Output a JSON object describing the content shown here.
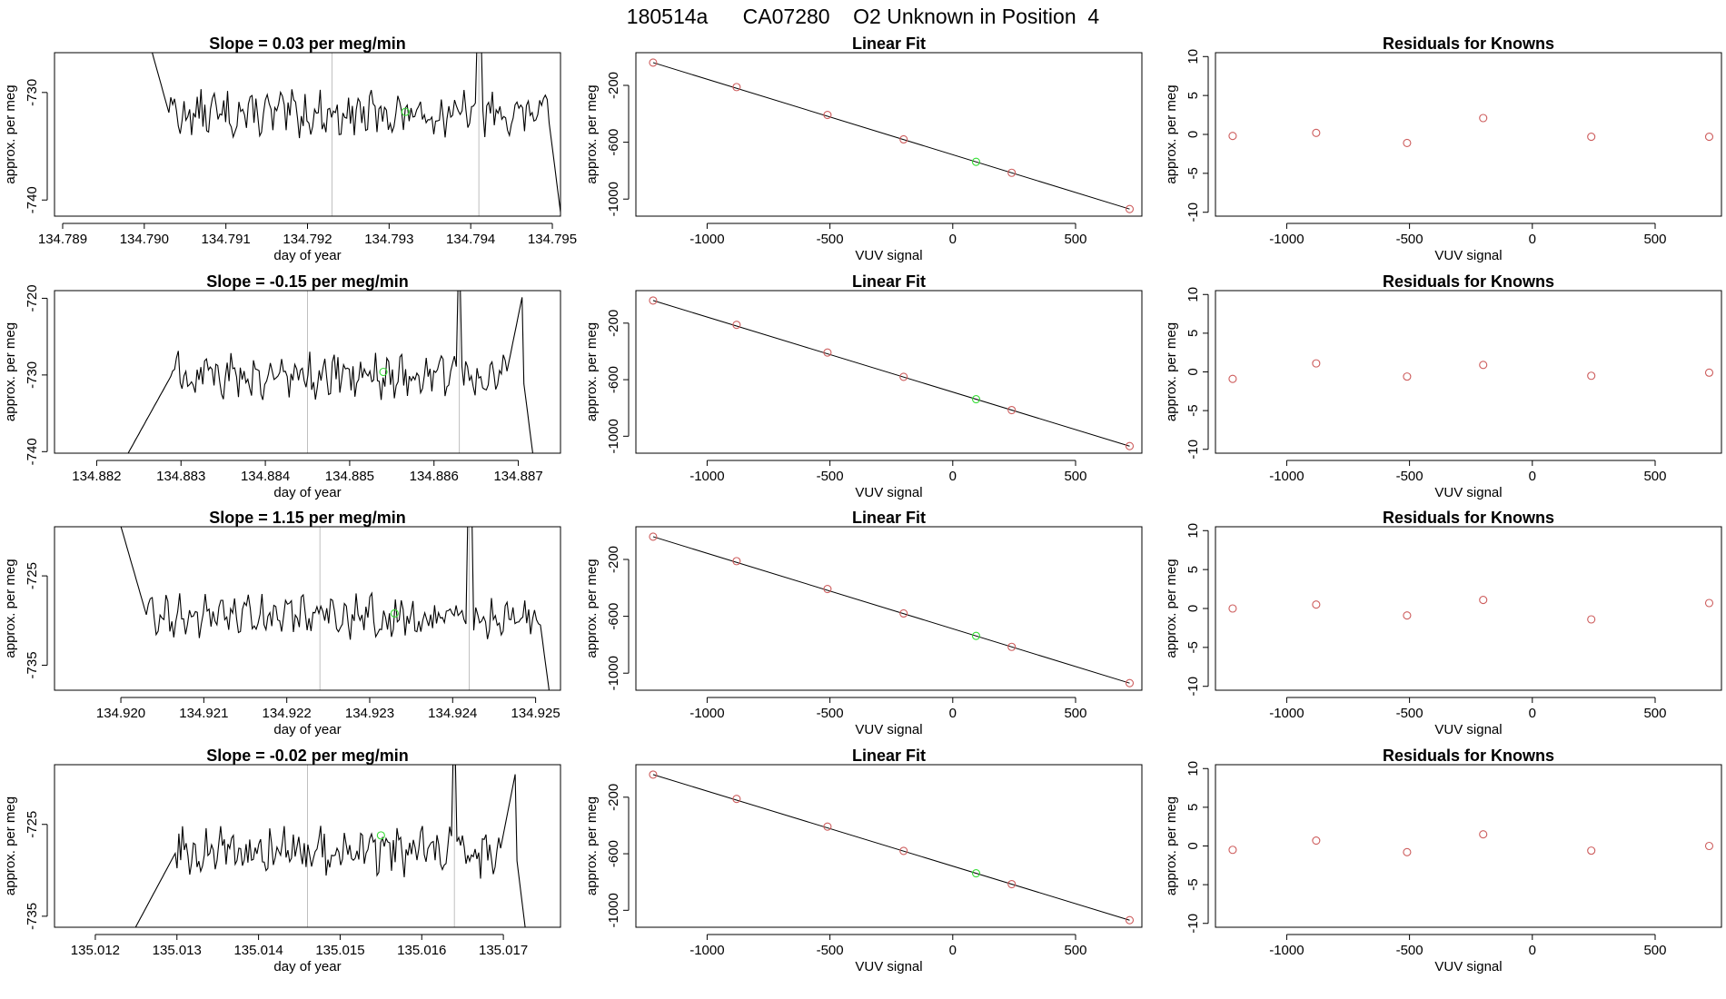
{
  "header": {
    "title": "180514a      CA07280    O2 Unknown in Position  4"
  },
  "colors": {
    "known_point": "#cd5c5c",
    "unknown_point": "#33dd33",
    "line": "#000000",
    "marker_line": "#bfbfbf",
    "frame": "#000000"
  },
  "chart_data": [
    {
      "type": "line",
      "title": "Slope =  0.03  per meg/min",
      "xlabel": "day of year",
      "ylabel": "approx. per meg",
      "xlim": [
        134.7889,
        134.7951
      ],
      "ylim": [
        -741.5,
        -726.3
      ],
      "x_ticks": [
        "134.789",
        "134.790",
        "134.791",
        "134.792",
        "134.793",
        "134.794",
        "134.795"
      ],
      "x_tick_values": [
        134.789,
        134.79,
        134.791,
        134.792,
        134.793,
        134.794,
        134.795
      ],
      "y_ticks": [
        "-730",
        "-740"
      ],
      "y_tick_values": [
        -730,
        -740
      ],
      "vlines": [
        134.7923,
        134.7941
      ],
      "unknown_point": {
        "x": 134.7932,
        "y": -731.8
      },
      "trace": {
        "x_start": 134.79,
        "x_end": 134.7951,
        "level": -732,
        "noise": 1.6,
        "mode": "flat"
      }
    },
    {
      "type": "scatter",
      "title": "Linear Fit",
      "xlabel": "VUV signal",
      "ylabel": "approx. per meg",
      "xlim": [
        -1290,
        770
      ],
      "ylim": [
        -1120,
        30
      ],
      "x_ticks": [
        "-1000",
        "-500",
        "0",
        "500"
      ],
      "x_tick_values": [
        -1000,
        -500,
        0,
        500
      ],
      "y_ticks": [
        "-200",
        "-600",
        "-1000"
      ],
      "y_tick_values": [
        -200,
        -600,
        -1000
      ],
      "knowns": [
        {
          "x": -1220,
          "y": -40
        },
        {
          "x": -880,
          "y": -212
        },
        {
          "x": -510,
          "y": -408
        },
        {
          "x": -200,
          "y": -580
        },
        {
          "x": 240,
          "y": -815
        },
        {
          "x": 720,
          "y": -1070
        }
      ],
      "unknown": {
        "x": 95,
        "y": -738
      },
      "fit_line": {
        "x0": -1220,
        "y0": -40,
        "x1": 720,
        "y1": -1070
      }
    },
    {
      "type": "scatter",
      "title": "Residuals for Knowns",
      "xlabel": "VUV signal",
      "ylabel": "approx. per meg",
      "xlim": [
        -1290,
        770
      ],
      "ylim": [
        -10.5,
        10.5
      ],
      "x_ticks": [
        "-1000",
        "-500",
        "0",
        "500"
      ],
      "x_tick_values": [
        -1000,
        -500,
        0,
        500
      ],
      "y_ticks": [
        "10",
        "5",
        "0",
        "-5",
        "-10"
      ],
      "y_tick_values": [
        10,
        5,
        0,
        -5,
        -10
      ],
      "points": [
        {
          "x": -1220,
          "y": -0.2
        },
        {
          "x": -880,
          "y": 0.2
        },
        {
          "x": -510,
          "y": -1.1
        },
        {
          "x": -200,
          "y": 2.1
        },
        {
          "x": 240,
          "y": -0.3
        },
        {
          "x": 720,
          "y": -0.3
        }
      ]
    },
    {
      "type": "line",
      "title": "Slope =  -0.15  per meg/min",
      "xlabel": "day of year",
      "ylabel": "approx. per meg",
      "xlim": [
        134.8815,
        134.8875
      ],
      "ylim": [
        -740.2,
        -719
      ],
      "x_ticks": [
        "134.882",
        "134.883",
        "134.884",
        "134.885",
        "134.886",
        "134.887"
      ],
      "x_tick_values": [
        134.882,
        134.883,
        134.884,
        134.885,
        134.886,
        134.887
      ],
      "y_ticks": [
        "-720",
        "-730",
        "-740"
      ],
      "y_tick_values": [
        -720,
        -730,
        -740
      ],
      "vlines": [
        134.8845,
        134.8863
      ],
      "unknown_point": {
        "x": 134.8854,
        "y": -729.6
      },
      "trace": {
        "x_start": 134.8823,
        "x_end": 134.8872,
        "level": -730,
        "noise": 2.2,
        "mode": "rise"
      }
    },
    {
      "type": "scatter",
      "title": "Linear Fit",
      "xlabel": "VUV signal",
      "ylabel": "approx. per meg",
      "xlim": [
        -1290,
        770
      ],
      "ylim": [
        -1120,
        30
      ],
      "x_ticks": [
        "-1000",
        "-500",
        "0",
        "500"
      ],
      "x_tick_values": [
        -1000,
        -500,
        0,
        500
      ],
      "y_ticks": [
        "-200",
        "-600",
        "-1000"
      ],
      "y_tick_values": [
        -200,
        -600,
        -1000
      ],
      "knowns": [
        {
          "x": -1220,
          "y": -40
        },
        {
          "x": -880,
          "y": -212
        },
        {
          "x": -510,
          "y": -408
        },
        {
          "x": -200,
          "y": -580
        },
        {
          "x": 240,
          "y": -815
        },
        {
          "x": 720,
          "y": -1070
        }
      ],
      "unknown": {
        "x": 95,
        "y": -738
      },
      "fit_line": {
        "x0": -1220,
        "y0": -40,
        "x1": 720,
        "y1": -1070
      }
    },
    {
      "type": "scatter",
      "title": "Residuals for Knowns",
      "xlabel": "VUV signal",
      "ylabel": "approx. per meg",
      "xlim": [
        -1290,
        770
      ],
      "ylim": [
        -10.5,
        10.5
      ],
      "x_ticks": [
        "-1000",
        "-500",
        "0",
        "500"
      ],
      "x_tick_values": [
        -1000,
        -500,
        0,
        500
      ],
      "y_ticks": [
        "10",
        "5",
        "0",
        "-5",
        "-10"
      ],
      "y_tick_values": [
        10,
        5,
        0,
        -5,
        -10
      ],
      "points": [
        {
          "x": -1220,
          "y": -0.9
        },
        {
          "x": -880,
          "y": 1.1
        },
        {
          "x": -510,
          "y": -0.6
        },
        {
          "x": -200,
          "y": 0.9
        },
        {
          "x": 240,
          "y": -0.5
        },
        {
          "x": 720,
          "y": -0.1
        }
      ]
    },
    {
      "type": "line",
      "title": "Slope =  1.15  per meg/min",
      "xlabel": "day of year",
      "ylabel": "approx. per meg",
      "xlim": [
        134.9192,
        134.9253
      ],
      "ylim": [
        -737.8,
        -719.5
      ],
      "x_ticks": [
        "134.920",
        "134.921",
        "134.922",
        "134.923",
        "134.924",
        "134.925"
      ],
      "x_tick_values": [
        134.92,
        134.921,
        134.922,
        134.923,
        134.924,
        134.925
      ],
      "y_ticks": [
        "-725",
        "-735"
      ],
      "y_tick_values": [
        -725,
        -735
      ],
      "vlines": [
        134.9224,
        134.9242
      ],
      "unknown_point": {
        "x": 134.9233,
        "y": -729.2
      },
      "trace": {
        "x_start": 134.92,
        "x_end": 134.9252,
        "level": -729.5,
        "noise": 1.8,
        "mode": "flat"
      }
    },
    {
      "type": "scatter",
      "title": "Linear Fit",
      "xlabel": "VUV signal",
      "ylabel": "approx. per meg",
      "xlim": [
        -1290,
        770
      ],
      "ylim": [
        -1120,
        30
      ],
      "x_ticks": [
        "-1000",
        "-500",
        "0",
        "500"
      ],
      "x_tick_values": [
        -1000,
        -500,
        0,
        500
      ],
      "y_ticks": [
        "-200",
        "-600",
        "-1000"
      ],
      "y_tick_values": [
        -200,
        -600,
        -1000
      ],
      "knowns": [
        {
          "x": -1220,
          "y": -40
        },
        {
          "x": -880,
          "y": -212
        },
        {
          "x": -510,
          "y": -408
        },
        {
          "x": -200,
          "y": -580
        },
        {
          "x": 240,
          "y": -815
        },
        {
          "x": 720,
          "y": -1070
        }
      ],
      "unknown": {
        "x": 95,
        "y": -738
      },
      "fit_line": {
        "x0": -1220,
        "y0": -40,
        "x1": 720,
        "y1": -1070
      }
    },
    {
      "type": "scatter",
      "title": "Residuals for Knowns",
      "xlabel": "VUV signal",
      "ylabel": "approx. per meg",
      "xlim": [
        -1290,
        770
      ],
      "ylim": [
        -10.5,
        10.5
      ],
      "x_ticks": [
        "-1000",
        "-500",
        "0",
        "500"
      ],
      "x_tick_values": [
        -1000,
        -500,
        0,
        500
      ],
      "y_ticks": [
        "10",
        "5",
        "0",
        "-5",
        "-10"
      ],
      "y_tick_values": [
        10,
        5,
        0,
        -5,
        -10
      ],
      "points": [
        {
          "x": -1220,
          "y": 0.0
        },
        {
          "x": -880,
          "y": 0.5
        },
        {
          "x": -510,
          "y": -0.9
        },
        {
          "x": -200,
          "y": 1.1
        },
        {
          "x": 240,
          "y": -1.4
        },
        {
          "x": 720,
          "y": 0.7
        }
      ]
    },
    {
      "type": "line",
      "title": "Slope =  -0.02  per meg/min",
      "xlabel": "day of year",
      "ylabel": "approx. per meg",
      "xlim": [
        135.0115,
        135.0177
      ],
      "ylim": [
        -736.2,
        -718.5
      ],
      "x_ticks": [
        "135.012",
        "135.013",
        "135.014",
        "135.015",
        "135.016",
        "135.017"
      ],
      "x_tick_values": [
        135.012,
        135.013,
        135.014,
        135.015,
        135.016,
        135.017
      ],
      "y_ticks": [
        "-725",
        "-735"
      ],
      "y_tick_values": [
        -725,
        -735
      ],
      "vlines": [
        135.0146,
        135.0164
      ],
      "unknown_point": {
        "x": 135.0155,
        "y": -726.2
      },
      "trace": {
        "x_start": 135.0124,
        "x_end": 135.0173,
        "level": -728,
        "noise": 2.0,
        "mode": "rise"
      }
    },
    {
      "type": "scatter",
      "title": "Linear Fit",
      "xlabel": "VUV signal",
      "ylabel": "approx. per meg",
      "xlim": [
        -1290,
        770
      ],
      "ylim": [
        -1120,
        30
      ],
      "x_ticks": [
        "-1000",
        "-500",
        "0",
        "500"
      ],
      "x_tick_values": [
        -1000,
        -500,
        0,
        500
      ],
      "y_ticks": [
        "-200",
        "-600",
        "-1000"
      ],
      "y_tick_values": [
        -200,
        -600,
        -1000
      ],
      "knowns": [
        {
          "x": -1220,
          "y": -40
        },
        {
          "x": -880,
          "y": -212
        },
        {
          "x": -510,
          "y": -408
        },
        {
          "x": -200,
          "y": -580
        },
        {
          "x": 240,
          "y": -815
        },
        {
          "x": 720,
          "y": -1070
        }
      ],
      "unknown": {
        "x": 95,
        "y": -738
      },
      "fit_line": {
        "x0": -1220,
        "y0": -40,
        "x1": 720,
        "y1": -1070
      }
    },
    {
      "type": "scatter",
      "title": "Residuals for Knowns",
      "xlabel": "VUV signal",
      "ylabel": "approx. per meg",
      "xlim": [
        -1290,
        770
      ],
      "ylim": [
        -10.5,
        10.5
      ],
      "x_ticks": [
        "-1000",
        "-500",
        "0",
        "500"
      ],
      "x_tick_values": [
        -1000,
        -500,
        0,
        500
      ],
      "y_ticks": [
        "10",
        "5",
        "0",
        "-5",
        "-10"
      ],
      "y_tick_values": [
        10,
        5,
        0,
        -5,
        -10
      ],
      "points": [
        {
          "x": -1220,
          "y": -0.5
        },
        {
          "x": -880,
          "y": 0.7
        },
        {
          "x": -510,
          "y": -0.8
        },
        {
          "x": -200,
          "y": 1.5
        },
        {
          "x": 240,
          "y": -0.6
        },
        {
          "x": 720,
          "y": 0.0
        }
      ]
    }
  ]
}
